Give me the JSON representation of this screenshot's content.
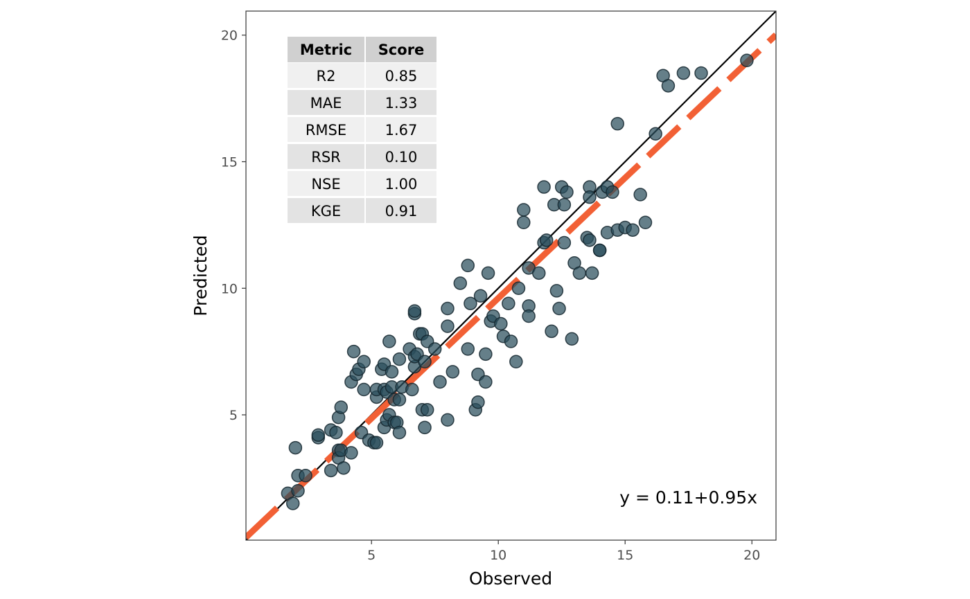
{
  "chart_data": {
    "type": "scatter",
    "xlabel": "Observed",
    "ylabel": "Predicted",
    "xlim": [
      0.05,
      20.95
    ],
    "ylim": [
      0.05,
      20.95
    ],
    "x_ticks": [
      5,
      10,
      15,
      20
    ],
    "y_ticks": [
      5,
      10,
      15,
      20
    ],
    "grid": false,
    "identity_line": {
      "intercept": 0,
      "slope": 1,
      "color": "#000000"
    },
    "fit_line": {
      "intercept": 0.11,
      "slope": 0.95,
      "color": "#f26035",
      "style": "dashed"
    },
    "equation_label": "y = 0.11+0.95x",
    "point_color": "#2a4d5c",
    "metrics_table": {
      "headers": [
        "Metric",
        "Score"
      ],
      "rows": [
        [
          "R2",
          "0.85"
        ],
        [
          "MAE",
          "1.33"
        ],
        [
          "RMSE",
          "1.67"
        ],
        [
          "RSR",
          "0.10"
        ],
        [
          "NSE",
          "1.00"
        ],
        [
          "KGE",
          "0.91"
        ]
      ]
    },
    "points": [
      [
        1.7,
        1.9
      ],
      [
        1.9,
        1.5
      ],
      [
        2.1,
        2.0
      ],
      [
        2.1,
        2.6
      ],
      [
        2.4,
        2.6
      ],
      [
        2.0,
        3.7
      ],
      [
        2.9,
        4.1
      ],
      [
        2.9,
        4.2
      ],
      [
        3.4,
        2.8
      ],
      [
        3.4,
        4.4
      ],
      [
        3.6,
        4.3
      ],
      [
        3.7,
        3.6
      ],
      [
        3.7,
        3.3
      ],
      [
        3.8,
        3.6
      ],
      [
        3.9,
        2.9
      ],
      [
        3.7,
        4.9
      ],
      [
        3.8,
        5.3
      ],
      [
        4.2,
        3.5
      ],
      [
        4.2,
        6.3
      ],
      [
        4.3,
        7.5
      ],
      [
        4.4,
        6.6
      ],
      [
        4.5,
        6.8
      ],
      [
        4.6,
        4.3
      ],
      [
        4.7,
        6.0
      ],
      [
        4.7,
        7.1
      ],
      [
        4.9,
        4.0
      ],
      [
        5.1,
        3.9
      ],
      [
        5.2,
        3.9
      ],
      [
        5.2,
        5.7
      ],
      [
        5.2,
        6.0
      ],
      [
        5.4,
        6.8
      ],
      [
        5.5,
        7.0
      ],
      [
        5.5,
        6.0
      ],
      [
        5.5,
        4.5
      ],
      [
        5.6,
        4.8
      ],
      [
        5.6,
        5.9
      ],
      [
        5.7,
        5.0
      ],
      [
        5.7,
        7.9
      ],
      [
        5.8,
        6.1
      ],
      [
        5.8,
        6.7
      ],
      [
        5.9,
        4.7
      ],
      [
        5.9,
        5.6
      ],
      [
        6.0,
        4.7
      ],
      [
        6.1,
        4.3
      ],
      [
        6.1,
        5.6
      ],
      [
        6.1,
        7.2
      ],
      [
        6.2,
        6.1
      ],
      [
        6.5,
        7.6
      ],
      [
        6.6,
        6.0
      ],
      [
        6.7,
        6.9
      ],
      [
        6.7,
        7.3
      ],
      [
        6.7,
        9.0
      ],
      [
        6.7,
        9.1
      ],
      [
        6.8,
        7.4
      ],
      [
        6.9,
        8.2
      ],
      [
        7.0,
        5.2
      ],
      [
        7.0,
        8.2
      ],
      [
        7.1,
        4.5
      ],
      [
        7.1,
        7.1
      ],
      [
        7.2,
        7.9
      ],
      [
        7.2,
        5.2
      ],
      [
        7.5,
        7.6
      ],
      [
        7.7,
        6.3
      ],
      [
        8.0,
        4.8
      ],
      [
        8.0,
        8.5
      ],
      [
        8.0,
        9.2
      ],
      [
        8.2,
        6.7
      ],
      [
        8.5,
        10.2
      ],
      [
        8.8,
        7.6
      ],
      [
        8.8,
        10.9
      ],
      [
        8.9,
        9.4
      ],
      [
        9.1,
        5.2
      ],
      [
        9.2,
        6.6
      ],
      [
        9.2,
        5.5
      ],
      [
        9.3,
        9.7
      ],
      [
        9.5,
        7.4
      ],
      [
        9.5,
        6.3
      ],
      [
        9.6,
        10.6
      ],
      [
        9.7,
        8.7
      ],
      [
        9.8,
        8.9
      ],
      [
        10.1,
        8.6
      ],
      [
        10.2,
        8.1
      ],
      [
        10.4,
        9.4
      ],
      [
        10.5,
        7.9
      ],
      [
        10.7,
        7.1
      ],
      [
        10.8,
        10.0
      ],
      [
        11.0,
        12.6
      ],
      [
        11.0,
        13.1
      ],
      [
        11.2,
        10.8
      ],
      [
        11.2,
        9.3
      ],
      [
        11.2,
        8.9
      ],
      [
        11.6,
        10.6
      ],
      [
        11.8,
        14.0
      ],
      [
        11.8,
        11.8
      ],
      [
        11.9,
        11.9
      ],
      [
        12.1,
        8.3
      ],
      [
        12.2,
        13.3
      ],
      [
        12.3,
        9.9
      ],
      [
        12.4,
        9.2
      ],
      [
        12.5,
        14.0
      ],
      [
        12.6,
        11.8
      ],
      [
        12.7,
        13.8
      ],
      [
        12.6,
        13.3
      ],
      [
        12.9,
        8.0
      ],
      [
        13.0,
        11.0
      ],
      [
        13.2,
        10.6
      ],
      [
        13.5,
        12.0
      ],
      [
        13.6,
        14.0
      ],
      [
        13.6,
        13.6
      ],
      [
        13.6,
        11.9
      ],
      [
        13.7,
        10.6
      ],
      [
        14.0,
        11.5
      ],
      [
        14.0,
        11.5
      ],
      [
        14.1,
        13.8
      ],
      [
        14.3,
        14.0
      ],
      [
        14.3,
        12.2
      ],
      [
        14.5,
        13.8
      ],
      [
        14.7,
        12.3
      ],
      [
        14.7,
        16.5
      ],
      [
        15.0,
        12.4
      ],
      [
        15.3,
        12.3
      ],
      [
        15.6,
        13.7
      ],
      [
        15.8,
        12.6
      ],
      [
        16.2,
        16.1
      ],
      [
        16.5,
        18.4
      ],
      [
        16.7,
        18.0
      ],
      [
        17.3,
        18.5
      ],
      [
        18.0,
        18.5
      ],
      [
        19.8,
        19.0
      ]
    ]
  }
}
